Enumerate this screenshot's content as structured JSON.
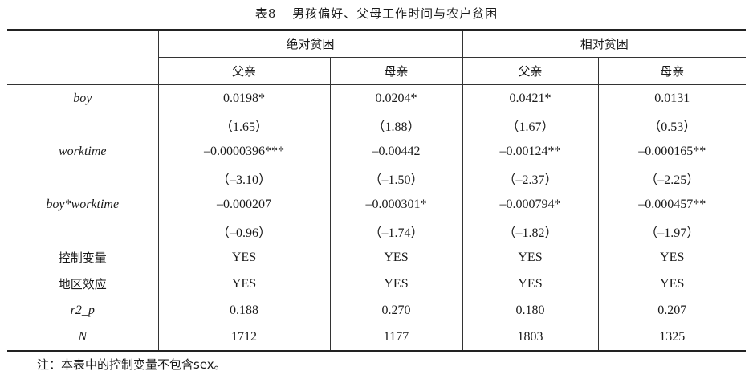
{
  "caption": {
    "number": "表8",
    "title": "男孩偏好、父母工作时间与农户贫困"
  },
  "header": {
    "groups": [
      "绝对贫困",
      "相对贫困"
    ],
    "subs": [
      "父亲",
      "母亲",
      "父亲",
      "母亲"
    ]
  },
  "rows": [
    {
      "label": "boy",
      "cells": [
        "0.0198*",
        "0.0204*",
        "0.0421*",
        "0.0131"
      ]
    },
    {
      "label": "",
      "cells": [
        "（1.65）",
        "（1.88）",
        "（1.67）",
        "（0.53）"
      ]
    },
    {
      "label": "worktime",
      "cells": [
        "–0.0000396***",
        "–0.00442",
        "–0.00124**",
        "–0.000165**"
      ]
    },
    {
      "label": "",
      "cells": [
        "（–3.10）",
        "（–1.50）",
        "（–2.37）",
        "（–2.25）"
      ]
    },
    {
      "label": "boy*worktime",
      "cells": [
        "–0.000207",
        "–0.000301*",
        "–0.000794*",
        "–0.000457**"
      ]
    },
    {
      "label": "",
      "cells": [
        "（–0.96）",
        "（–1.74）",
        "（–1.82）",
        "（–1.97）"
      ]
    },
    {
      "label": "控制变量",
      "cells": [
        "YES",
        "YES",
        "YES",
        "YES"
      ]
    },
    {
      "label": "地区效应",
      "cells": [
        "YES",
        "YES",
        "YES",
        "YES"
      ]
    },
    {
      "label": "r2_p",
      "cells": [
        "0.188",
        "0.270",
        "0.180",
        "0.207"
      ]
    },
    {
      "label": "N",
      "cells": [
        "1712",
        "1177",
        "1803",
        "1325"
      ]
    }
  ],
  "note": "注：本表中的控制变量不包含sex。"
}
